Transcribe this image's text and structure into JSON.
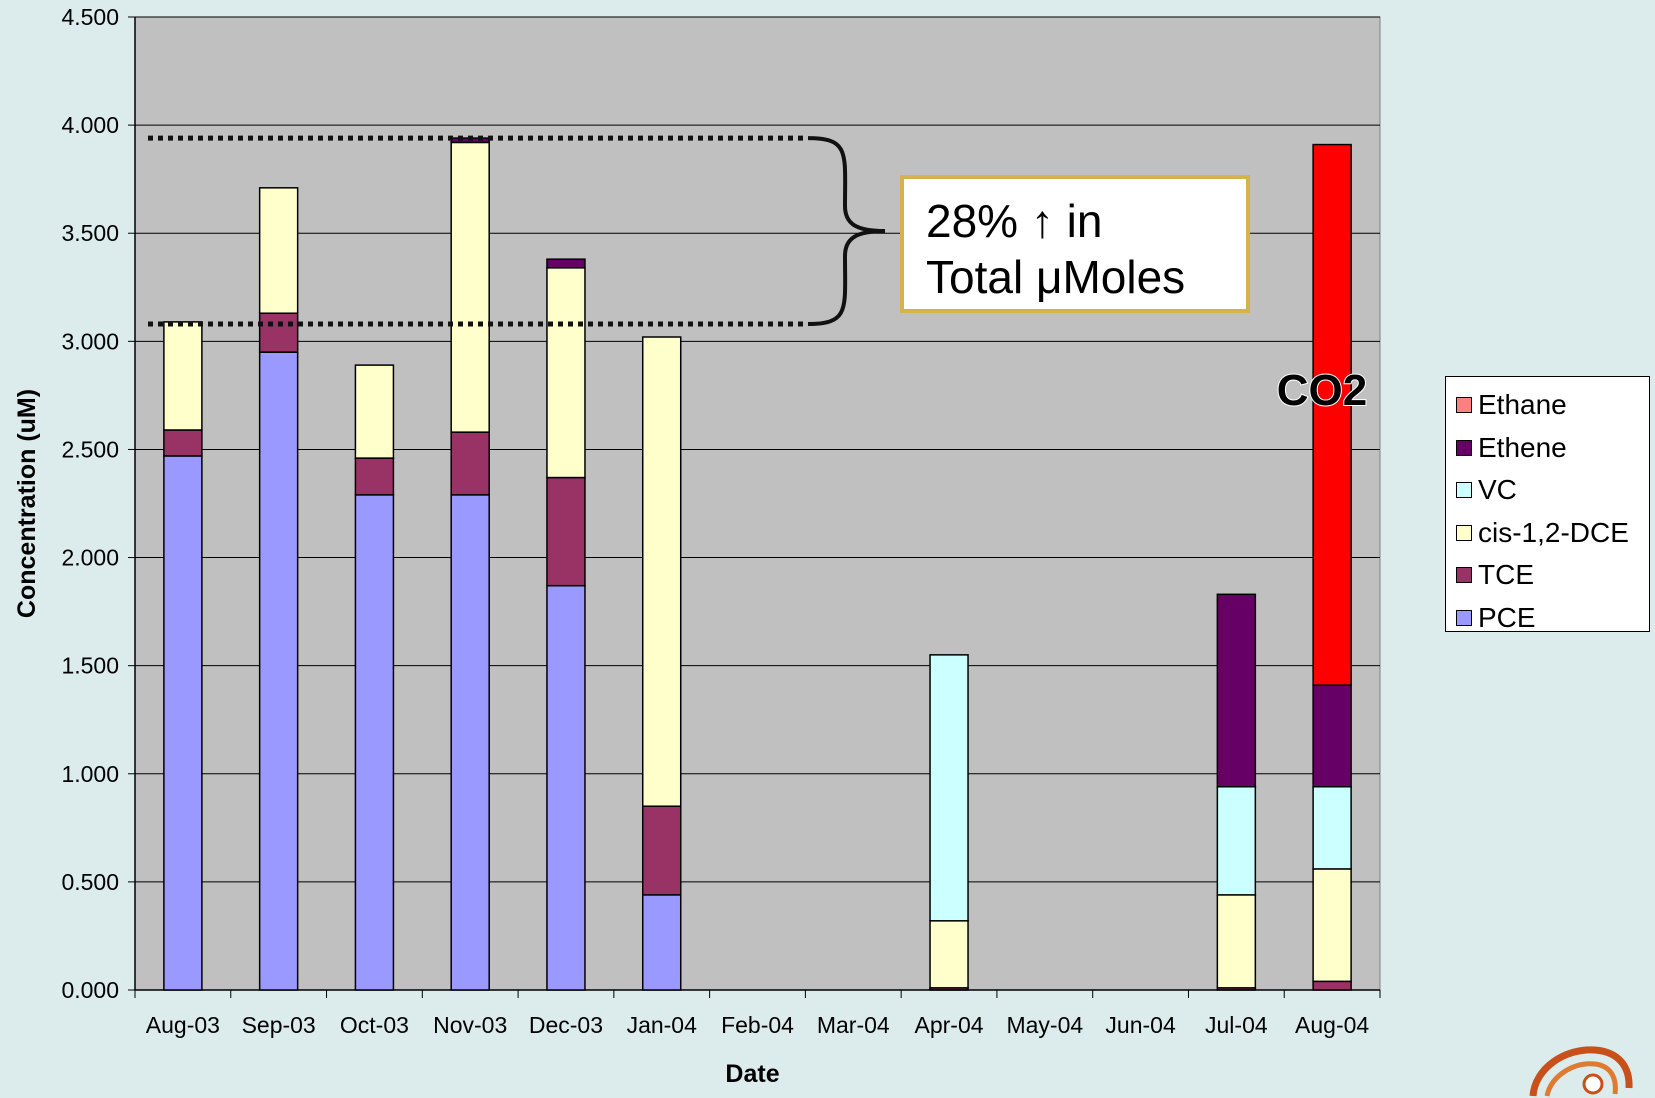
{
  "chart_data": {
    "type": "bar",
    "stacked": true,
    "title": "",
    "xlabel": "Date",
    "ylabel": "Concentration (uM)",
    "ylim": [
      0,
      4.5
    ],
    "yticks": [
      "0.000",
      "0.500",
      "1.000",
      "1.500",
      "2.000",
      "2.500",
      "3.000",
      "3.500",
      "4.000",
      "4.500"
    ],
    "grid": true,
    "legend_position": "right",
    "categories": [
      "Aug-03",
      "Sep-03",
      "Oct-03",
      "Nov-03",
      "Dec-03",
      "Jan-04",
      "Feb-04",
      "Mar-04",
      "Apr-04",
      "May-04",
      "Jun-04",
      "Jul-04",
      "Aug-04"
    ],
    "series": [
      {
        "name": "PCE",
        "color": "#9999ff",
        "values": [
          2.47,
          2.95,
          2.29,
          2.29,
          1.87,
          0.44,
          0,
          0,
          0,
          0,
          0,
          0,
          0
        ]
      },
      {
        "name": "TCE",
        "color": "#993366",
        "values": [
          0.12,
          0.18,
          0.17,
          0.29,
          0.5,
          0.41,
          0,
          0,
          0.01,
          0,
          0,
          0.01,
          0.04
        ]
      },
      {
        "name": "cis-1,2-DCE",
        "color": "#ffffcc",
        "values": [
          0.5,
          0.58,
          0.43,
          1.34,
          0.97,
          2.17,
          0,
          0,
          0.31,
          0,
          0,
          0.43,
          0.52
        ]
      },
      {
        "name": "VC",
        "color": "#ccffff",
        "values": [
          0,
          0,
          0,
          0,
          0,
          0,
          0,
          0,
          1.23,
          0,
          0,
          0.5,
          0.38
        ]
      },
      {
        "name": "Ethene",
        "color": "#660066",
        "values": [
          0,
          0,
          0,
          0.02,
          0.04,
          0,
          0,
          0,
          0,
          0,
          0,
          0.89,
          0.47
        ]
      },
      {
        "name": "Ethane",
        "color": "#ff8080",
        "values": [
          0,
          0,
          0,
          0,
          0,
          0,
          0,
          0,
          0,
          0,
          0,
          0,
          0
        ]
      },
      {
        "name": "CO2",
        "color": "#ff0000",
        "values": [
          0,
          0,
          0,
          0,
          0,
          0,
          0,
          0,
          0,
          0,
          0,
          0,
          2.5
        ]
      }
    ],
    "legend_series": [
      "Ethane",
      "Ethene",
      "VC",
      "cis-1,2-DCE",
      "TCE",
      "PCE"
    ],
    "annotations": {
      "callout_line1": "28% ↑ in",
      "callout_line2": "Total μMoles",
      "co2_label": "CO2",
      "bracket_low": 3.08,
      "bracket_high": 3.94
    },
    "colors": {
      "plot_background": "#c0c0c0",
      "page_background": "#dcecec",
      "callout_border": "#d4b24c"
    }
  }
}
